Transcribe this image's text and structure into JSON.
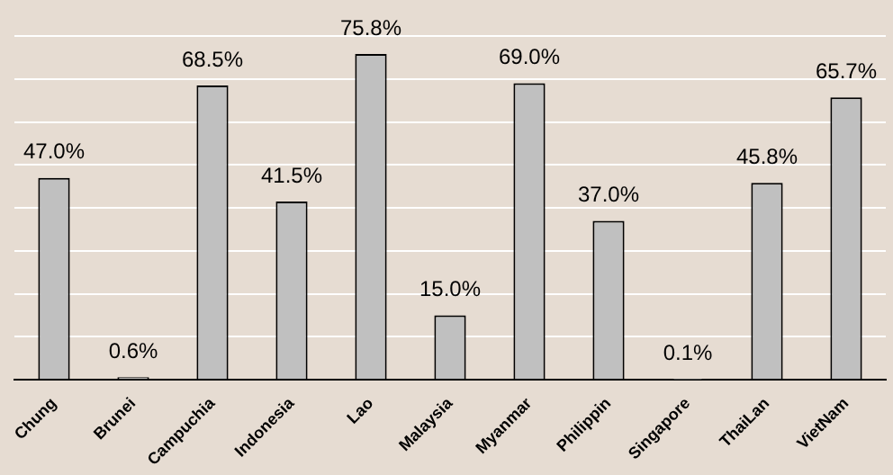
{
  "chart_data": {
    "type": "bar",
    "categories": [
      "Chung",
      "Brunei",
      "Campuchia",
      "Indonesia",
      "Lao",
      "Malaysia",
      "Myanmar",
      "Philippin",
      "Singapore",
      "ThaiLan",
      "VietNam"
    ],
    "values": [
      47.0,
      0.6,
      68.5,
      41.5,
      75.8,
      15.0,
      69.0,
      37.0,
      0.1,
      45.8,
      65.7
    ],
    "value_labels": [
      "47.0%",
      "0.6%",
      "68.5%",
      "41.5%",
      "75.8%",
      "15.0%",
      "69.0%",
      "37.0%",
      "0.1%",
      "45.8%",
      "65.7%"
    ],
    "color": "#c0c0c0",
    "ylim": [
      0,
      80
    ],
    "yticks": [
      {
        "value": 0,
        "label": null
      },
      {
        "value": 10,
        "label": null
      },
      {
        "value": 20,
        "label": null
      },
      {
        "value": 30,
        "label": null
      },
      {
        "value": 40,
        "label": null
      },
      {
        "value": 50,
        "label": null
      },
      {
        "value": 60,
        "label": null
      },
      {
        "value": 70,
        "label": null
      },
      {
        "value": 80,
        "label": null
      }
    ],
    "tick_labels": "x",
    "grid": "y",
    "legend": false
  }
}
